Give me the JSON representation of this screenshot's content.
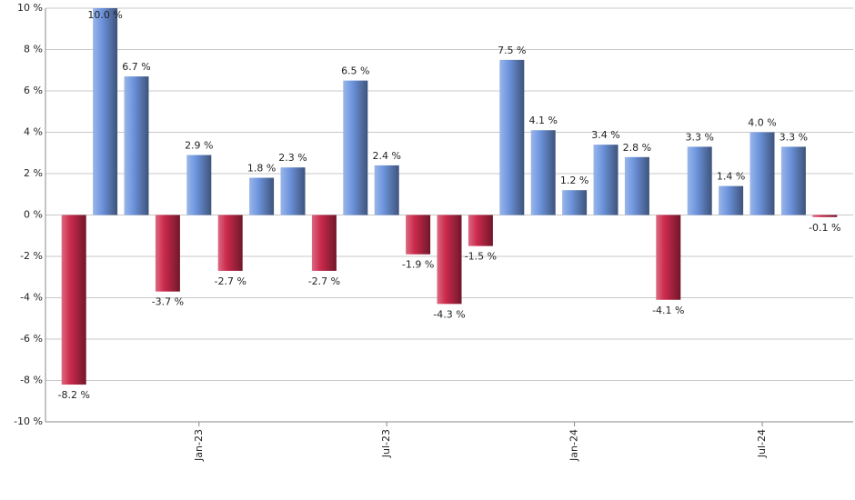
{
  "chart_data": {
    "type": "bar",
    "categories": [
      null,
      null,
      null,
      null,
      "Jan-23",
      null,
      null,
      null,
      null,
      null,
      "Jul-23",
      null,
      null,
      null,
      null,
      null,
      "Jan-24",
      null,
      null,
      null,
      null,
      null,
      "Jul-24",
      null,
      null
    ],
    "values": [
      -8.2,
      10.0,
      6.7,
      -3.7,
      2.9,
      -2.7,
      1.8,
      2.3,
      -2.7,
      6.5,
      2.4,
      -1.9,
      -4.3,
      -1.5,
      7.5,
      4.1,
      1.2,
      3.4,
      2.8,
      -4.1,
      3.3,
      1.4,
      4.0,
      3.3,
      -0.1
    ],
    "value_labels": [
      "-8.2 %",
      "10.0 %",
      "6.7 %",
      "-3.7 %",
      "2.9 %",
      "-2.7 %",
      "1.8 %",
      "2.3 %",
      "-2.7 %",
      "6.5 %",
      "2.4 %",
      "-1.9 %",
      "-4.3 %",
      "-1.5 %",
      "7.5 %",
      "4.1 %",
      "1.2 %",
      "3.4 %",
      "2.8 %",
      "-4.1 %",
      "3.3 %",
      "1.4 %",
      "4.0 %",
      "3.3 %",
      "-0.1 %"
    ],
    "positive_color": "#6f96df",
    "negative_color": "#cc2a4c",
    "ylim": [
      -10,
      10
    ],
    "yticks": [
      {
        "value": -10,
        "label": "-10 %"
      },
      {
        "value": -8,
        "label": "-8 %"
      },
      {
        "value": -6,
        "label": "-6 %"
      },
      {
        "value": -4,
        "label": "-4 %"
      },
      {
        "value": -2,
        "label": "-2 %"
      },
      {
        "value": 0,
        "label": "0 %"
      },
      {
        "value": 2,
        "label": "2 %"
      },
      {
        "value": 4,
        "label": "4 %"
      },
      {
        "value": 6,
        "label": "6 %"
      },
      {
        "value": 8,
        "label": "8 %"
      },
      {
        "value": 10,
        "label": "10 %"
      }
    ],
    "grid": true
  }
}
